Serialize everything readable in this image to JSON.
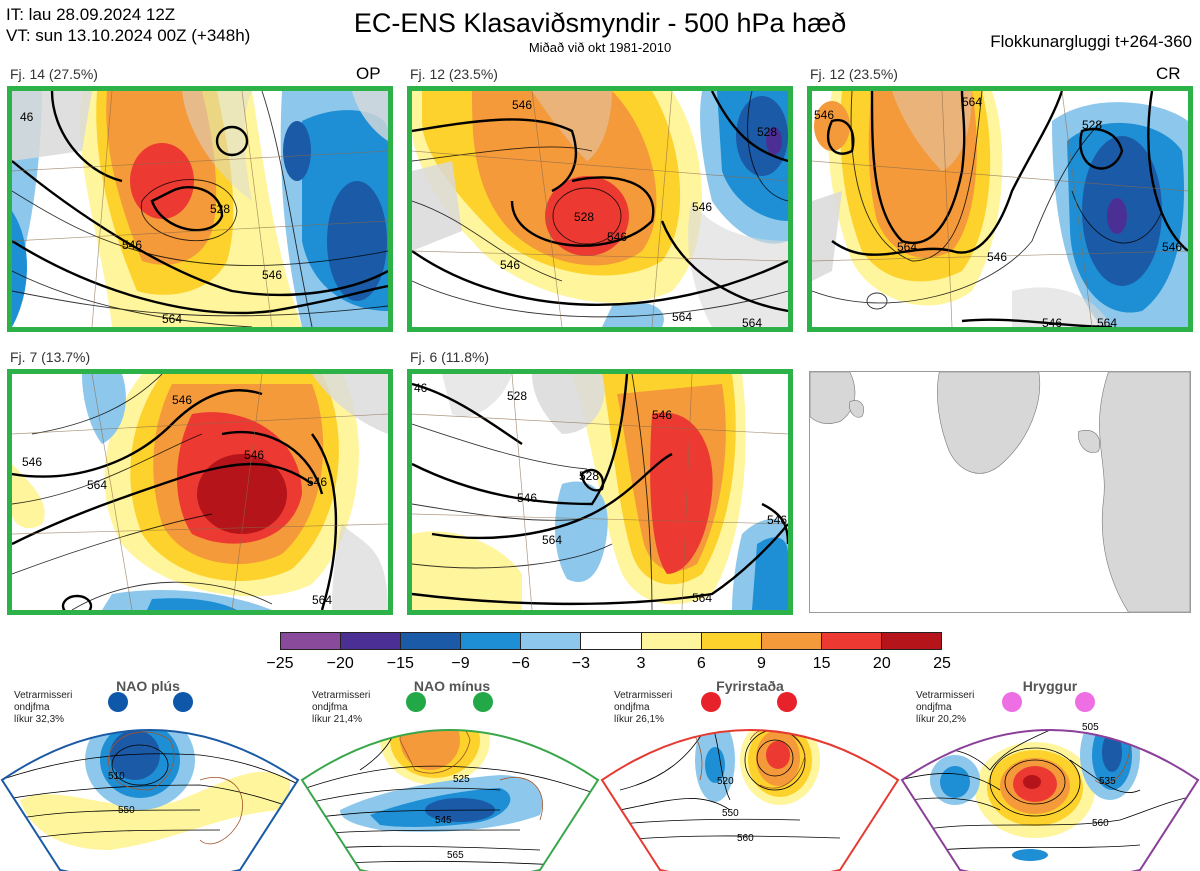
{
  "header": {
    "it_line": "IT: lau 28.09.2024 12Z",
    "vt_line": "VT: sun 13.10.2024 00Z  (+348h)",
    "title": "EC-ENS Klasaviðsmyndir - 500 hPa hæð",
    "subtitle": "Miðað við okt 1981-2010",
    "window": "Flokkunargluggi t+264-360"
  },
  "clusters": [
    {
      "label": "Fj. 14 (27.5%)",
      "tag": "OP",
      "contours": [
        "46",
        "528",
        "546",
        "546",
        "564"
      ]
    },
    {
      "label": "Fj. 12 (23.5%)",
      "tag": "",
      "contours": [
        "546",
        "528",
        "546",
        "546",
        "564",
        "546",
        "528",
        "564"
      ]
    },
    {
      "label": "Fj. 12 (23.5%)",
      "tag": "CR",
      "contours": [
        "546",
        "564",
        "528",
        "546",
        "546",
        "564",
        "546",
        "564"
      ]
    },
    {
      "label": "Fj. 7 (13.7%)",
      "tag": "",
      "contours": [
        "546",
        "546",
        "564",
        "546",
        "546",
        "564"
      ]
    },
    {
      "label": "Fj. 6 (11.8%)",
      "tag": "",
      "contours": [
        "46",
        "528",
        "546",
        "546",
        "564",
        "528",
        "564",
        "546"
      ]
    }
  ],
  "colorbar": {
    "ticks": [
      "−25",
      "−20",
      "−15",
      "−9",
      "−6",
      "−3",
      "3",
      "6",
      "9",
      "15",
      "20",
      "25"
    ],
    "colors": [
      "#8a4a9c",
      "#4b2f95",
      "#1b5aa6",
      "#1e8fd5",
      "#8dc8ec",
      "#ffffff",
      "#fff59d",
      "#fdd22c",
      "#f59a3a",
      "#ec3a32",
      "#b4141a"
    ]
  },
  "regimes": [
    {
      "name": "NAO plús",
      "info": [
        "Vetrarmisseri",
        "ondjfma",
        "líkur 32,3%"
      ],
      "color": "#1a5aa5",
      "dot_color": "#0f57a8",
      "contours": [
        "510",
        "550"
      ]
    },
    {
      "name": "NAO mínus",
      "info": [
        "Vetrarmisseri",
        "ondjfma",
        "líkur 21,4%"
      ],
      "color": "#3aa64a",
      "dot_color": "#22a847",
      "contours": [
        "525",
        "545",
        "565"
      ]
    },
    {
      "name": "Fyrirstaða",
      "info": [
        "Vetrarmisseri",
        "ondjfma",
        "líkur 26,1%"
      ],
      "color": "#e53a32",
      "dot_color": "#e8222a",
      "contours": [
        "520",
        "550",
        "560"
      ]
    },
    {
      "name": "Hryggur",
      "info": [
        "Vetrarmisseri",
        "ondjfma",
        "líkur 20,2%"
      ],
      "color": "#8a3f98",
      "dot_color": "#ee6fe4",
      "contours": [
        "505",
        "535",
        "560"
      ]
    }
  ]
}
